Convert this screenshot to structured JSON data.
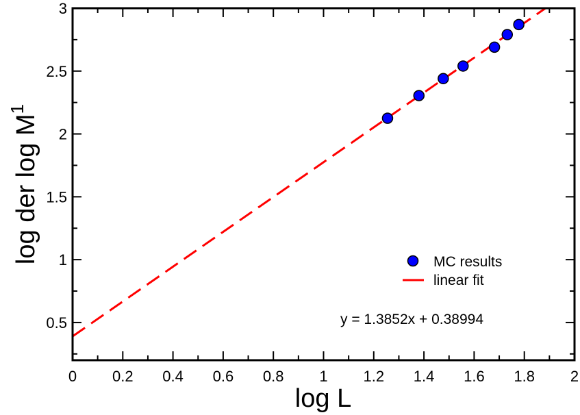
{
  "chart_data": {
    "type": "scatter",
    "title": "",
    "xlabel": "log L",
    "ylabel": {
      "main": "log der log M",
      "superscript": "1"
    },
    "xlim": [
      0,
      2
    ],
    "ylim": [
      0.2,
      3
    ],
    "x_ticks": [
      "0",
      "0.2",
      "0.4",
      "0.6",
      "0.8",
      "1",
      "1.2",
      "1.4",
      "1.6",
      "1.8",
      "2"
    ],
    "y_ticks": [
      "0.5",
      "1",
      "1.5",
      "2",
      "2.5",
      "3"
    ],
    "y_tick_values": [
      0.5,
      1,
      1.5,
      2,
      2.5,
      3
    ],
    "grid": false,
    "legend_position": "bottom-right",
    "series": [
      {
        "name": "MC results",
        "kind": "markers",
        "color": "#0000ff",
        "points": [
          {
            "x": 1.255,
            "y": 2.125
          },
          {
            "x": 1.38,
            "y": 2.305
          },
          {
            "x": 1.477,
            "y": 2.44
          },
          {
            "x": 1.556,
            "y": 2.54
          },
          {
            "x": 1.681,
            "y": 2.69
          },
          {
            "x": 1.732,
            "y": 2.79
          },
          {
            "x": 1.778,
            "y": 2.87
          }
        ]
      },
      {
        "name": "linear fit",
        "kind": "dashed-line",
        "color": "#ff0000",
        "slope": 1.3852,
        "intercept": 0.38994
      }
    ],
    "annotation": "y = 1.3852x + 0.38994"
  }
}
